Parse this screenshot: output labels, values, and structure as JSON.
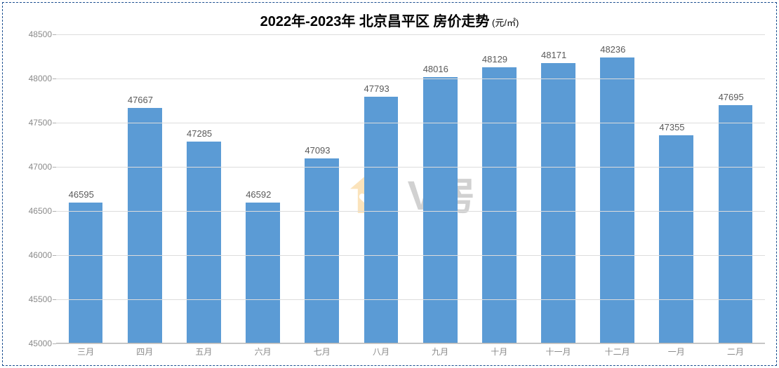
{
  "chart": {
    "type": "bar",
    "title_main": "2022年-2023年 北京昌平区 房价走势",
    "title_sub": " (元/㎡)",
    "title_fontsize": 20,
    "title_sub_fontsize": 13,
    "title_color": "#000000",
    "categories": [
      "三月",
      "四月",
      "五月",
      "六月",
      "七月",
      "八月",
      "九月",
      "十月",
      "十一月",
      "十二月",
      "一月",
      "二月"
    ],
    "values": [
      46595,
      47667,
      47285,
      46592,
      47093,
      47793,
      48016,
      48129,
      48171,
      48236,
      47355,
      47695
    ],
    "value_labels": [
      "46595",
      "47667",
      "47285",
      "46592",
      "47093",
      "47793",
      "48016",
      "48129",
      "48171",
      "48236",
      "47355",
      "47695"
    ],
    "bar_color": "#5b9bd5",
    "bar_width_ratio": 0.58,
    "ylim": [
      45000,
      48500
    ],
    "ytick_step": 500,
    "yticks": [
      45000,
      45500,
      46000,
      46500,
      47000,
      47500,
      48000,
      48500
    ],
    "ytick_labels": [
      "45000",
      "45500",
      "46000",
      "46500",
      "47000",
      "47500",
      "48000",
      "48500"
    ],
    "tick_fontsize": 12,
    "tick_color": "#8a8a8a",
    "value_label_fontsize": 13,
    "value_label_color": "#5a5a5a",
    "grid_color": "#dcdcdc",
    "axis_line_color": "#b0b0b0",
    "background_color": "#ffffff",
    "outer_border_color": "#1a4d8f",
    "outer_border_style": "dashed"
  },
  "watermark": {
    "text": "V房",
    "text_color": "#6b6b6b",
    "fontsize": 58,
    "font_weight": "bold",
    "opacity": 0.3,
    "logo_house_color": "#f5a623",
    "logo_check_color": "#ffffff"
  }
}
